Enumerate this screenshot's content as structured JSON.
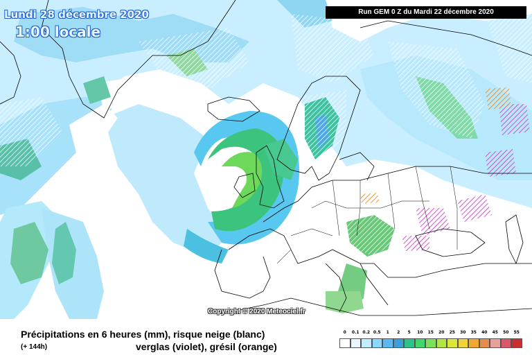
{
  "map": {
    "date_label": "Lundi 28 décembre 2020",
    "time_label": "1:00 locale",
    "run_label": "Run GEM 0 Z du Mardi 22 décembre 2020",
    "copyright": "Copyright © 2020 Meteociel.fr",
    "region": "Europe / North Atlantic"
  },
  "legend": {
    "title_line1": "Précipitations en 6 heures (mm), risque neige (blanc)",
    "forecast_hour": "(+ 144h)",
    "title_line2": "verglas (violet), grésil (orange)",
    "scale": [
      {
        "label": "0",
        "color": "#ffffff"
      },
      {
        "label": "0.1",
        "color": "#e6f7ff"
      },
      {
        "label": "0.2",
        "color": "#c2ecff"
      },
      {
        "label": "0.5",
        "color": "#8fd6ff"
      },
      {
        "label": "1",
        "color": "#5ab8f0"
      },
      {
        "label": "2",
        "color": "#3aa0dc"
      },
      {
        "label": "5",
        "color": "#2ec28a"
      },
      {
        "label": "10",
        "color": "#3fd66a"
      },
      {
        "label": "15",
        "color": "#7ee05a"
      },
      {
        "label": "20",
        "color": "#b4e640"
      },
      {
        "label": "25",
        "color": "#dce636"
      },
      {
        "label": "30",
        "color": "#f0d23c"
      },
      {
        "label": "35",
        "color": "#f0a830"
      },
      {
        "label": "40",
        "color": "#e88a4a"
      },
      {
        "label": "45",
        "color": "#e8a09a"
      },
      {
        "label": "50",
        "color": "#d85a6a"
      },
      {
        "label": "55",
        "color": "#c83030"
      }
    ]
  }
}
